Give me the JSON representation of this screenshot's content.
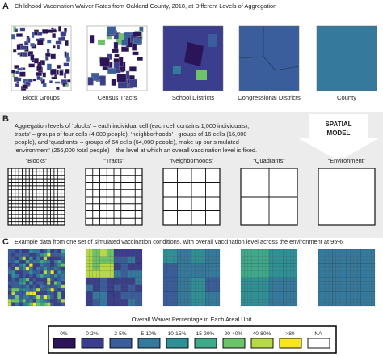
{
  "panel_a": {
    "label": "A",
    "title": "Childhood Vaccination Waiver Rates from Oakland County, 2018, at Different Levels of Aggregation",
    "maps": [
      "Block Groups",
      "Census Tracts",
      "School Districts",
      "Congressional Districts",
      "County"
    ]
  },
  "panel_b": {
    "label": "B",
    "text_lines": [
      "Aggregation levels of ‘blocks’ – each individual cell (each cell contains 1,000 individuals),",
      "tracts’ – groups of four cells (4,000 people), ‘neighborhoods’ - groups of 16 cells (16,000",
      "people), and  ‘quadrants’ – groups of 64 cells (64,000 people), make up our simulated",
      "‘environment’ (256,000 total people) – the level at which an overall vaccination level is fixed."
    ],
    "arrow_lines": [
      "SPATIAL",
      "MODEL"
    ],
    "grids": [
      "“Blocks”",
      "“Tracts”",
      "“Neighborhoods”",
      "“Quadrants”",
      "“Environment”"
    ]
  },
  "panel_c": {
    "label": "C",
    "caption": "Example data from one set of simulated vaccination conditions, with overall vaccination level across the environment at 95%",
    "legend_title": "Overall Waiver Percentage in Each Areal Unit",
    "legend": [
      {
        "label": "0%",
        "color": "#2b1458"
      },
      {
        "label": "0-2%",
        "color": "#3b3e8c"
      },
      {
        "label": "2-5%",
        "color": "#3a5d9b"
      },
      {
        "label": "5-10%",
        "color": "#35799c"
      },
      {
        "label": "10-15%",
        "color": "#2f9196"
      },
      {
        "label": "15-20%",
        "color": "#3fa98a"
      },
      {
        "label": "20-40%",
        "color": "#6cc36a"
      },
      {
        "label": "40-80%",
        "color": "#b8d947"
      },
      {
        "label": ">80",
        "color": "#f7e522"
      },
      {
        "label": "NA",
        "color": "#ffffff"
      }
    ]
  }
}
